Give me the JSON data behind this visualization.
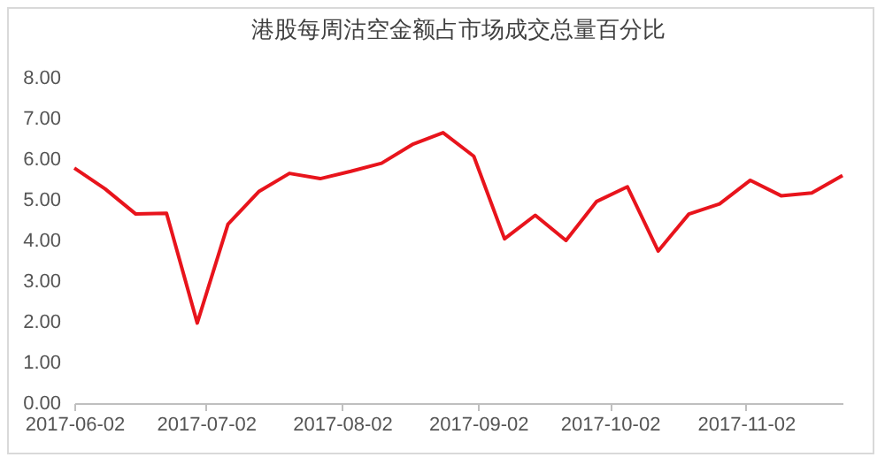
{
  "chart_data": {
    "type": "line",
    "title": "港股每周沽空金额占市场成交总量百分比",
    "x": [
      "2017-06-02",
      "2017-06-09",
      "2017-06-16",
      "2017-06-23",
      "2017-06-30",
      "2017-07-07",
      "2017-07-14",
      "2017-07-21",
      "2017-07-28",
      "2017-08-04",
      "2017-08-11",
      "2017-08-18",
      "2017-08-25",
      "2017-09-01",
      "2017-09-08",
      "2017-09-15",
      "2017-09-22",
      "2017-09-29",
      "2017-10-06",
      "2017-10-13",
      "2017-10-20",
      "2017-10-27",
      "2017-11-03",
      "2017-11-10",
      "2017-11-17",
      "2017-11-24"
    ],
    "series": [
      {
        "color": "#e8141c",
        "values": [
          5.78,
          5.27,
          4.65,
          4.67,
          1.97,
          4.4,
          5.2,
          5.65,
          5.52,
          5.7,
          5.9,
          6.36,
          6.65,
          6.07,
          4.04,
          4.62,
          4.0,
          4.96,
          5.32,
          3.74,
          4.65,
          4.9,
          5.48,
          5.1,
          5.17,
          5.6
        ]
      }
    ],
    "xlim": [
      "2017-06-02",
      "2017-11-24"
    ],
    "xticks": [
      {
        "value": "2017-06-02",
        "label": "2017-06-02"
      },
      {
        "value": "2017-07-02",
        "label": "2017-07-02"
      },
      {
        "value": "2017-08-02",
        "label": "2017-08-02"
      },
      {
        "value": "2017-09-02",
        "label": "2017-09-02"
      },
      {
        "value": "2017-10-02",
        "label": "2017-10-02"
      },
      {
        "value": "2017-11-02",
        "label": "2017-11-02"
      }
    ],
    "ylim": [
      0,
      8
    ],
    "yticks": [
      {
        "value": 0,
        "label": "0.00"
      },
      {
        "value": 1,
        "label": "1.00"
      },
      {
        "value": 2,
        "label": "2.00"
      },
      {
        "value": 3,
        "label": "3.00"
      },
      {
        "value": 4,
        "label": "4.00"
      },
      {
        "value": 5,
        "label": "5.00"
      },
      {
        "value": 6,
        "label": "6.00"
      },
      {
        "value": 7,
        "label": "7.00"
      },
      {
        "value": 8,
        "label": "8.00"
      }
    ],
    "grid": false,
    "legend": false,
    "marker": "none",
    "line_style": "solid"
  }
}
